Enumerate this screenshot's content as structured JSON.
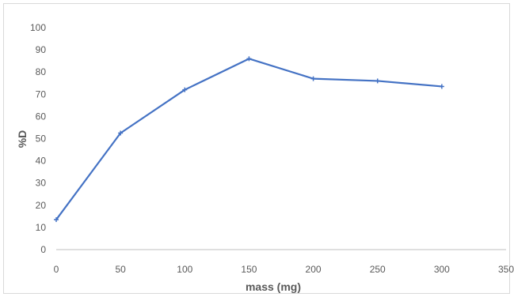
{
  "chart_data": {
    "type": "line",
    "title": "",
    "xlabel": "mass (mg)",
    "ylabel": "%D",
    "xlim": [
      0,
      350
    ],
    "ylim": [
      0,
      100
    ],
    "x_ticks": [
      0,
      50,
      100,
      150,
      200,
      250,
      300,
      350
    ],
    "y_ticks": [
      0,
      10,
      20,
      30,
      40,
      50,
      60,
      70,
      80,
      90,
      100
    ],
    "grid": false,
    "legend": "none",
    "series": [
      {
        "x": [
          0,
          50,
          100,
          150,
          200,
          250,
          300
        ],
        "y": [
          13.5,
          52.5,
          72,
          86,
          77,
          76,
          73.5
        ],
        "color": "#4472c4"
      }
    ]
  }
}
